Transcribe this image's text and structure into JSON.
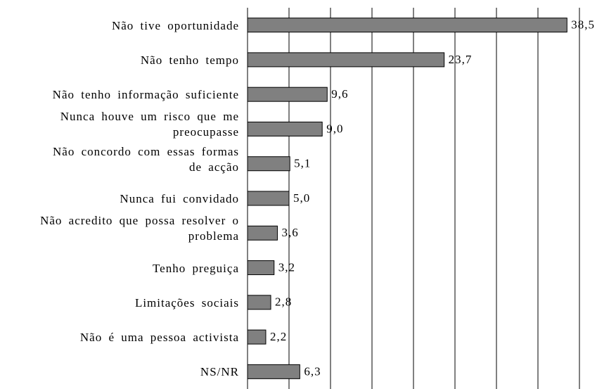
{
  "chart_data": {
    "type": "barh",
    "categories": [
      "Não tive oportunidade",
      "Não tenho tempo",
      "Não tenho informação suficiente",
      "Nunca houve um risco que me\npreocupasse",
      "Não concordo com essas formas\nde acção",
      "Nunca fui convidado",
      "Não acredito que possa resolver o\nproblema",
      "Tenho preguiça",
      "Limitações sociais",
      "Não é uma pessoa activista",
      "NS/NR"
    ],
    "values": [
      38.5,
      23.7,
      9.6,
      9.0,
      5.1,
      5.0,
      3.6,
      3.2,
      2.8,
      2.2,
      6.3
    ],
    "value_labels": [
      "38,5",
      "23,7",
      "9,6",
      "9,0",
      "5,1",
      "5,0",
      "3,6",
      "3,2",
      "2,8",
      "2,2",
      "6,3"
    ],
    "color": "#808080",
    "xlim": [
      0,
      40
    ],
    "xticks": [
      0,
      5,
      10,
      15,
      20,
      25,
      30,
      35,
      40
    ],
    "grid": true
  }
}
